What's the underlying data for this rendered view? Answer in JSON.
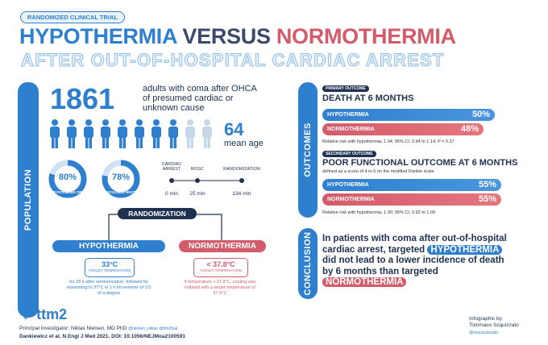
{
  "header": {
    "tag": "RANDOMIZED CLINICAL TRIAL",
    "title_a": "HYPOTHERMIA",
    "title_b": "VERSUS",
    "title_c": "NORMOTHERMIA",
    "subtitle": "AFTER OUT-OF-HOSPITAL CARDIAC ARREST"
  },
  "population": {
    "label": "POPULATION",
    "count": "1861",
    "count_desc": "adults with coma after OHCA of presumed cardiac or unknown cause",
    "age": "64",
    "age_label": "mean age",
    "stats": [
      {
        "value": "80%",
        "label": "BYSTANDER CPR"
      },
      {
        "value": "78%",
        "label": "SHOCKABLE RHYTHM"
      }
    ],
    "timeline": [
      {
        "event": "CARDIAC ARREST",
        "time": "0 min"
      },
      {
        "event": "ROSC",
        "time": "25 min"
      },
      {
        "event": "RANDOMIZATION",
        "time": "134 min"
      }
    ]
  },
  "randomization": {
    "title": "RANDOMIZATION",
    "arms": [
      {
        "name": "HYPOTHERMIA",
        "target": "33°C",
        "target_label": "TARGET TEMPERATURE",
        "description": "for 28 h after randomization, followed by rewarming to 37°C in 1 h increments of 1/3 of a degree"
      },
      {
        "name": "NORMOTHERMIA",
        "target": "< 37.8°C",
        "target_label": "TARGET TEMPERATURE",
        "description": "If temperature ≥ 37.8°C, cooling was initiated with a target temperature of 37.5°C"
      }
    ]
  },
  "outcomes": {
    "label": "OUTCOMES",
    "primary": {
      "tag": "PRIMARY OUTCOME",
      "title": "DEATH AT 6 MONTHS",
      "bars": [
        {
          "name": "HYPOTHERMIA",
          "value": "50%"
        },
        {
          "name": "NORMOTHERMIA",
          "value": "48%"
        }
      ],
      "note": "Relative risk with hypothermia, 1.04; 95% CI, 0.94 to 1.14; P = 0.37"
    },
    "secondary": {
      "tag": "SECONDARY OUTCOME",
      "title": "POOR FUNCTIONAL OUTCOME AT 6 MONTHS",
      "definition": "defined as a score of 4 to 6 on the modified Rankin scale",
      "bars": [
        {
          "name": "HYPOTHERMIA",
          "value": "55%"
        },
        {
          "name": "NORMOTHERMIA",
          "value": "55%"
        }
      ],
      "note": "Relative risk with hypothermia, 1.00; 95% CI, 0.92 to 1.09"
    }
  },
  "conclusion": {
    "label": "CONCLUSION",
    "text_a": "In patients with coma after out-of-hospital cardiac arrest, targeted",
    "highlight_a": "HYPOTHERMIA",
    "text_b": "did not lead to a lower incidence of death by 6 months than targeted",
    "highlight_b": "NORMOTHERMIA"
  },
  "footer": {
    "logo": "ttm2",
    "investigator": "Principal Investigator: Niklas Nielsen, MD PhD",
    "handles": [
      "@nielsen_niklas",
      "@ttm2trial"
    ],
    "citation": "Dankiewicz et al. N Engl J Med 2021. DOI: 10.1056/NEJMoa2100591",
    "credit": "Infographic by Tommaso Scquizzato",
    "credit_handle": "@rsscquizzato"
  }
}
